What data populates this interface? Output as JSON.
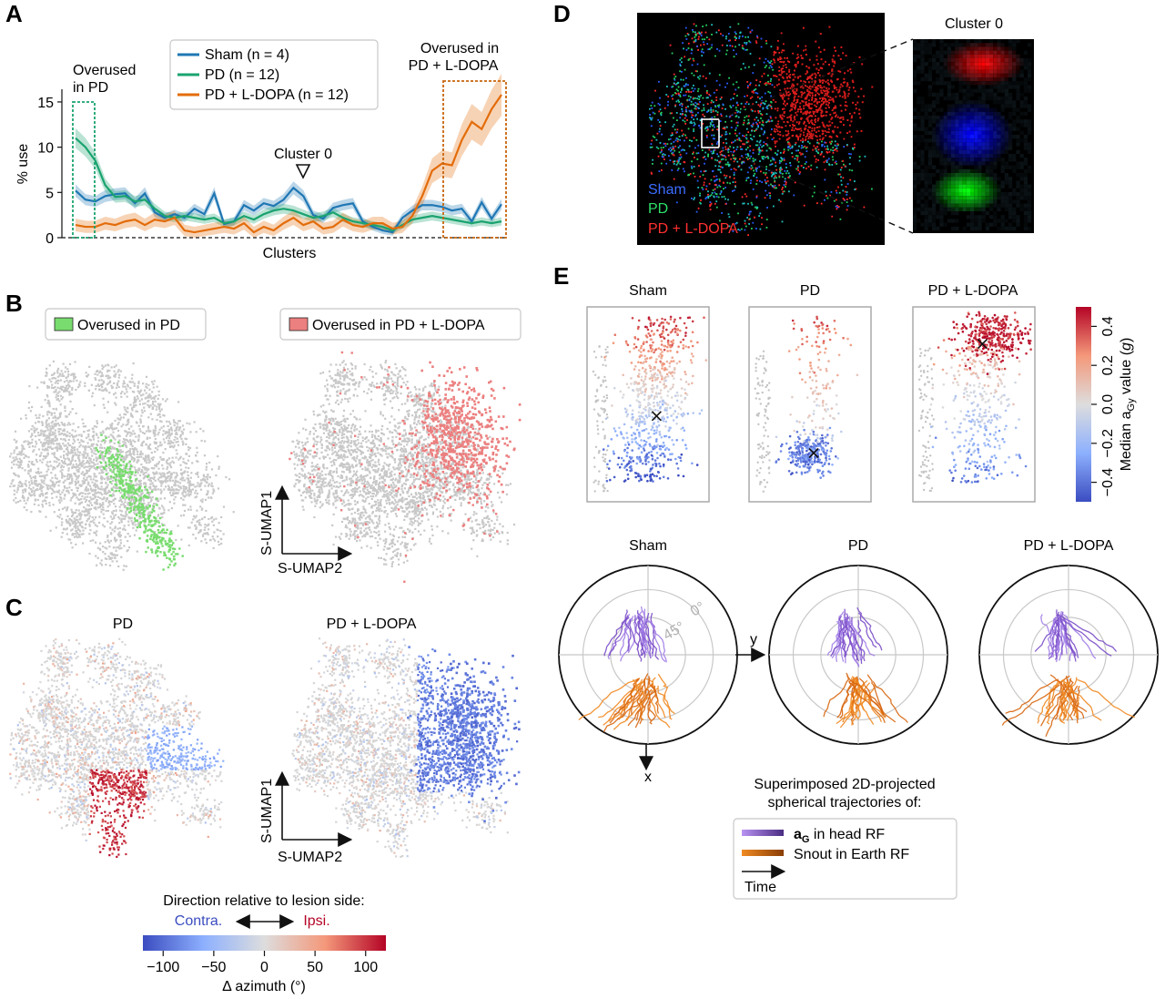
{
  "panels": {
    "a": "A",
    "b": "B",
    "c": "C",
    "d": "D",
    "e": "E"
  },
  "colors": {
    "sham": "#1f77b4",
    "pd": "#1aa36f",
    "ldopa": "#e36c0a",
    "gray_cloud": "#c8c8c8",
    "green_overlay": "#78dc6e",
    "red_overlay": "#ec7f7f",
    "contra": "#3b4cc0",
    "ipsi": "#b40426",
    "purple": "#8a5ad8",
    "orange": "#e07012"
  },
  "chart_data": [
    {
      "type": "line",
      "panel": "A",
      "title": "",
      "xlabel": "Clusters",
      "ylabel": "% use",
      "ylim": [
        0,
        16
      ],
      "yticks": [
        "0",
        "5",
        "10",
        "15"
      ],
      "x": [
        1,
        2,
        3,
        4,
        5,
        6,
        7,
        8,
        9,
        10,
        11,
        12,
        13,
        14,
        15,
        16,
        17,
        18,
        19,
        20,
        21,
        22,
        23,
        24,
        25,
        26,
        27,
        28,
        29,
        30,
        31,
        32,
        33,
        34,
        35,
        36,
        37,
        38,
        39,
        40,
        41,
        42,
        43,
        44
      ],
      "series": [
        {
          "name": "Sham (n = 4)",
          "color_key": "sham",
          "values": [
            5.2,
            4.2,
            4.0,
            4.6,
            4.8,
            4.9,
            3.8,
            4.9,
            2.8,
            2.2,
            2.6,
            2.2,
            3.2,
            2.6,
            4.9,
            1.5,
            1.8,
            3.6,
            3.0,
            3.8,
            3.5,
            4.2,
            5.5,
            4.6,
            2.5,
            2.1,
            3.3,
            3.6,
            3.8,
            1.8,
            1.2,
            0.8,
            0.6,
            2.2,
            3.0,
            3.6,
            3.6,
            3.4,
            3.0,
            3.2,
            1.8,
            3.9,
            2.1,
            3.7
          ]
        },
        {
          "name": "PD (n = 12)",
          "color_key": "pd",
          "values": [
            11.0,
            10.0,
            8.5,
            5.8,
            4.5,
            4.6,
            4.0,
            4.2,
            3.2,
            2.4,
            2.2,
            2.4,
            2.2,
            2.0,
            2.2,
            1.6,
            1.8,
            2.4,
            2.0,
            2.6,
            3.0,
            3.2,
            3.0,
            2.6,
            2.2,
            2.4,
            2.8,
            2.2,
            1.8,
            1.6,
            1.4,
            1.2,
            0.8,
            1.4,
            2.0,
            2.2,
            2.4,
            2.2,
            2.0,
            1.8,
            1.6,
            1.8,
            1.6,
            1.8
          ]
        },
        {
          "name": "PD + L-DOPA (n = 12)",
          "color_key": "ldopa",
          "values": [
            1.4,
            1.2,
            1.2,
            1.6,
            1.4,
            1.8,
            2.0,
            1.4,
            2.0,
            1.8,
            2.2,
            0.8,
            0.6,
            0.8,
            1.0,
            1.2,
            1.0,
            1.6,
            0.6,
            1.2,
            0.8,
            1.6,
            2.2,
            1.4,
            1.8,
            1.0,
            1.2,
            2.0,
            1.4,
            1.2,
            1.6,
            1.6,
            1.0,
            1.2,
            2.4,
            4.6,
            7.4,
            8.2,
            8.0,
            10.8,
            12.8,
            12.0,
            14.2,
            15.8
          ]
        }
      ],
      "annotations": {
        "overused_pd": [
          "Overused",
          "in PD"
        ],
        "overused_ldopa": [
          "Overused in",
          "PD + L-DOPA"
        ],
        "cluster0": "Cluster 0"
      }
    },
    {
      "type": "heatmap",
      "panel": "C",
      "colorbar": {
        "ticks": [
          "−100",
          "−50",
          "0",
          "50",
          "100"
        ],
        "label": "Δ azimuth (°)",
        "range": [
          -120,
          120
        ]
      }
    },
    {
      "type": "scatter",
      "panel": "E",
      "colorbar": {
        "ticks": [
          "−0.4",
          "−0.2",
          "0.0",
          "0.2",
          "0.4"
        ],
        "label": "Median a",
        "label_sub": "Gy",
        "label_tail": " value (",
        "label_unit": "g",
        "label_end": ")",
        "range": [
          -0.5,
          0.5
        ]
      }
    }
  ],
  "panel_b": {
    "legend_pd": "Overused in PD",
    "legend_ldopa": "Overused in PD + L-DOPA",
    "axis_y": "S-UMAP1",
    "axis_x": "S-UMAP2"
  },
  "panel_c": {
    "title_pd": "PD",
    "title_ldopa": "PD + L-DOPA",
    "axis_y": "S-UMAP1",
    "axis_x": "S-UMAP2",
    "direction_label": "Direction relative to lesion side:",
    "contra": "Contra.",
    "ipsi": "Ipsi."
  },
  "panel_d": {
    "zoom_title": "Cluster 0",
    "legend": [
      "Sham",
      "PD",
      "PD + L-DOPA"
    ]
  },
  "panel_e": {
    "titles": [
      "Sham",
      "PD",
      "PD + L-DOPA"
    ],
    "polar_labels": {
      "r0": "0°",
      "r45": "45°",
      "y": "y",
      "x": "x"
    },
    "traj_caption": [
      "Superimposed 2D-projected",
      "spherical trajectories of:"
    ],
    "legend_purple_bold": "a",
    "legend_purple_sub": "G",
    "legend_purple_tail": " in head RF",
    "legend_orange": "Snout in Earth RF",
    "legend_time": "Time"
  }
}
